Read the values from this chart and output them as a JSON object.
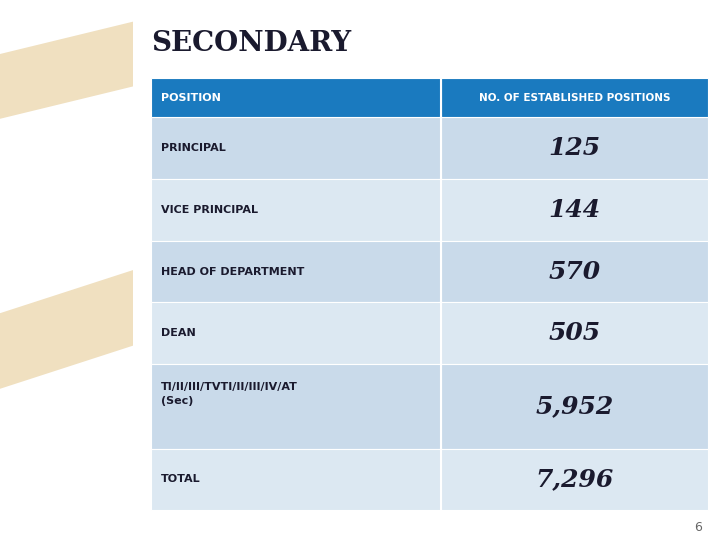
{
  "title": "SECONDARY",
  "title_fontsize": 20,
  "header_col1": "POSITION",
  "header_col2": "NO. OF ESTABLISHED POSITIONS",
  "rows": [
    {
      "position": "PRINCIPAL",
      "value": "125"
    },
    {
      "position": "VICE PRINCIPAL",
      "value": "144"
    },
    {
      "position": "HEAD OF DEPARTMENT",
      "value": "570"
    },
    {
      "position": "DEAN",
      "value": "505"
    },
    {
      "position": "TI/II/III/TVTI/II/III/IV/AT\n(Sec)",
      "value": "5,952"
    },
    {
      "position": "TOTAL",
      "value": "7,296"
    }
  ],
  "header_bg": "#1a7abf",
  "header_text_color": "#ffffff",
  "row_bg_odd": "#c9daea",
  "row_bg_even": "#dce8f2",
  "row_text_color": "#1a1a2e",
  "value_fontsize": 18,
  "label_fontsize": 8,
  "header_fontsize": 8,
  "bg_color": "#ffffff",
  "slide_number": "6",
  "left_bg": "#a8c8e0",
  "band_color": "#f0e0c0"
}
